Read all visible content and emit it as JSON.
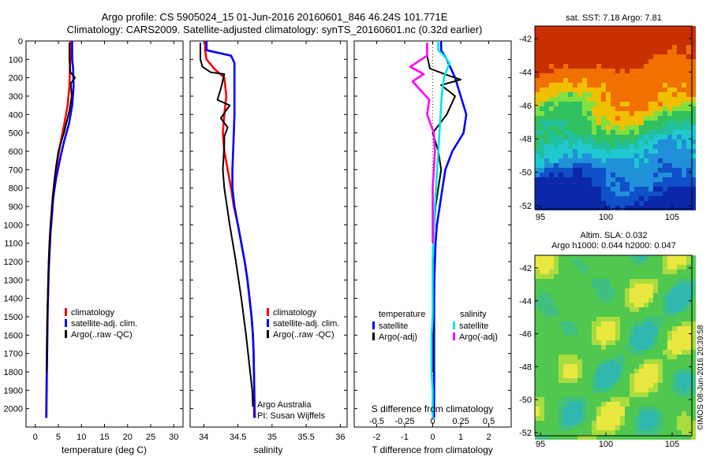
{
  "header": {
    "line1": "Argo profile: CS 5905024_15 01-Jun-2016 20160601_846 46.24S 101.771E",
    "line2": "Climatology: CARS2009. Satellite-adjusted climatology: synTS_20160601.nc (0.32d earlier)"
  },
  "chart_data": [
    {
      "type": "line",
      "id": "temperature",
      "xlabel": "temperature (deg C)",
      "xlim": [
        -2,
        32
      ],
      "ylim": [
        2100,
        0
      ],
      "x_ticks": [
        "0",
        "5",
        "10",
        "15",
        "20",
        "25",
        "30"
      ],
      "y_ticks": [
        "0",
        "100",
        "200",
        "300",
        "400",
        "500",
        "600",
        "700",
        "800",
        "900",
        "1000",
        "1100",
        "1200",
        "1300",
        "1400",
        "1500",
        "1600",
        "1700",
        "1800",
        "1900",
        "2000"
      ],
      "series": [
        {
          "name": "climatology",
          "color": "#ff0000",
          "x": [
            7.6,
            7.6,
            7.5,
            7.4,
            7.0,
            6.3,
            5.5,
            4.8,
            4.2,
            3.8,
            3.5,
            3.2,
            3.0,
            2.9,
            2.8,
            2.7,
            2.6,
            2.55,
            2.5,
            2.45,
            2.4,
            2.35
          ],
          "y": [
            0,
            100,
            150,
            250,
            350,
            450,
            550,
            650,
            750,
            850,
            950,
            1050,
            1150,
            1250,
            1350,
            1450,
            1550,
            1650,
            1750,
            1850,
            1950,
            2050
          ]
        },
        {
          "name": "satellite-adj. clim.",
          "color": "#0000ff",
          "x": [
            8.0,
            8.0,
            8.2,
            8.3,
            8.0,
            7.3,
            6.2,
            5.3,
            4.5,
            3.9,
            3.6,
            3.3,
            3.1,
            2.9,
            2.8,
            2.7,
            2.65,
            2.6,
            2.55,
            2.5,
            2.45,
            2.4
          ],
          "y": [
            0,
            100,
            150,
            250,
            350,
            450,
            550,
            650,
            750,
            850,
            950,
            1050,
            1150,
            1250,
            1350,
            1450,
            1550,
            1650,
            1750,
            1850,
            1950,
            2050
          ]
        },
        {
          "name": "Argo(..raw -QC)",
          "color": "#000000",
          "x": [
            7.4,
            7.4,
            7.6,
            8.6,
            7.7,
            7.9,
            7.4,
            6.2,
            5.0,
            4.4,
            4.0,
            3.6,
            3.3,
            3.1,
            2.9,
            2.8,
            2.7,
            2.6,
            2.55,
            2.5,
            2.45
          ],
          "y": [
            10,
            100,
            170,
            200,
            230,
            300,
            380,
            500,
            600,
            700,
            800,
            900,
            1000,
            1100,
            1200,
            1300,
            1400,
            1500,
            1600,
            1700,
            1800
          ]
        }
      ],
      "legend": [
        "climatology",
        "satellite-adj. clim.",
        "Argo(..raw -QC)"
      ]
    },
    {
      "type": "line",
      "id": "salinity",
      "xlabel": "salinity",
      "xlim": [
        33.8,
        36.1
      ],
      "ylim": [
        2100,
        0
      ],
      "x_ticks": [
        "34",
        "34.5",
        "35",
        "35.5",
        "36"
      ],
      "series": [
        {
          "name": "climatology",
          "color": "#ff0000",
          "x": [
            34.02,
            34.02,
            34.04,
            34.15,
            34.3,
            34.33,
            34.3,
            34.28,
            34.3,
            34.35,
            34.4,
            34.44,
            34.5,
            34.55,
            34.6,
            34.64,
            34.67,
            34.7,
            34.72,
            34.73,
            34.74,
            34.75
          ],
          "y": [
            0,
            50,
            100,
            150,
            200,
            300,
            400,
            500,
            600,
            700,
            800,
            900,
            1000,
            1100,
            1200,
            1300,
            1400,
            1500,
            1600,
            1700,
            1900,
            2050
          ]
        },
        {
          "name": "satellite-adj. clim.",
          "color": "#0000ff",
          "x": [
            34.04,
            34.04,
            34.4,
            34.45,
            34.45,
            34.45,
            34.45,
            34.44,
            34.43,
            34.42,
            34.42,
            34.45,
            34.5,
            34.55,
            34.6,
            34.64,
            34.67,
            34.7,
            34.72,
            34.73,
            34.74,
            34.74
          ],
          "y": [
            0,
            50,
            80,
            120,
            200,
            300,
            400,
            500,
            600,
            700,
            800,
            900,
            1000,
            1100,
            1200,
            1300,
            1400,
            1500,
            1600,
            1700,
            1900,
            2050
          ]
        },
        {
          "name": "Argo(..raw -QC)",
          "color": "#000000",
          "x": [
            33.95,
            33.95,
            33.98,
            34.1,
            34.3,
            34.25,
            34.2,
            34.38,
            34.25,
            34.35,
            34.3,
            34.3,
            34.28,
            34.3,
            34.38,
            34.47,
            34.55,
            34.62,
            34.68,
            34.71,
            34.72
          ],
          "y": [
            10,
            100,
            140,
            170,
            180,
            260,
            320,
            350,
            420,
            470,
            520,
            560,
            700,
            800,
            1000,
            1200,
            1400,
            1600,
            1800,
            1900,
            1990
          ]
        }
      ],
      "legend": [
        "climatology",
        "satellite-adj. clim.",
        "Argo(..raw -QC)"
      ],
      "annotation": [
        "Argo Australia",
        "PI: Susan Wijffels"
      ]
    },
    {
      "type": "line",
      "id": "difference",
      "xlabel": "T difference from climatology",
      "xlabel_top": "S difference from climatology",
      "xlim": [
        -2.8,
        2.8
      ],
      "ylim": [
        2100,
        0
      ],
      "x_ticks_T": [
        "-2",
        "-1",
        "0",
        "1",
        "2"
      ],
      "x_ticks_S": [
        "-0.5",
        "-0.25",
        "0",
        "0.25",
        "0.5"
      ],
      "series": [
        {
          "name": "temperature satellite",
          "color": "#0000ff",
          "x": [
            0.3,
            0.3,
            0.5,
            0.8,
            1.0,
            1.2,
            1.1,
            0.7,
            0.45,
            0.35,
            0.25,
            0.15,
            0.1,
            0.08,
            0.06,
            0.05,
            0.05,
            0.05,
            0.05,
            0.05,
            0.05,
            0.05
          ],
          "y": [
            0,
            50,
            100,
            200,
            300,
            400,
            500,
            600,
            700,
            800,
            900,
            1000,
            1100,
            1200,
            1300,
            1400,
            1500,
            1600,
            1700,
            1800,
            1900,
            2050
          ]
        },
        {
          "name": "temperature Argo(-adj)",
          "color": "#000000",
          "x": [
            -0.2,
            -0.2,
            -0.1,
            0.6,
            1.0,
            0.3,
            0.8,
            0.5,
            0.0,
            0.2,
            0.3,
            0.2,
            0.1,
            0.05,
            0.02,
            0.01,
            0.0,
            0.0,
            0.0,
            0.0
          ],
          "y": [
            10,
            80,
            150,
            190,
            210,
            240,
            300,
            400,
            500,
            600,
            700,
            800,
            900,
            1000,
            1100,
            1200,
            1300,
            1400,
            1600,
            1800
          ]
        },
        {
          "name": "salinity satellite",
          "color": "#00e5e5",
          "x": [
            0.05,
            0.05,
            0.1,
            0.15,
            0.1,
            0.08,
            0.07,
            0.06,
            0.05,
            0.04,
            0.03,
            0.02,
            0.01,
            0.0,
            0.0,
            0.0,
            -0.01,
            -0.01,
            0.0,
            0.0
          ],
          "y": [
            0,
            50,
            80,
            120,
            200,
            300,
            400,
            500,
            600,
            700,
            800,
            900,
            1000,
            1200,
            1400,
            1500,
            1600,
            1800,
            1900,
            2050
          ]
        },
        {
          "name": "salinity Argo(-adj)",
          "color": "#ff00ff",
          "x": [
            -0.05,
            -0.05,
            -0.2,
            -0.08,
            -0.18,
            -0.03,
            -0.05,
            0.01,
            0.02,
            0.01,
            0.0,
            0.0,
            0.0,
            0.0
          ],
          "y": [
            10,
            80,
            140,
            180,
            220,
            320,
            400,
            500,
            600,
            700,
            800,
            900,
            1000,
            1100
          ]
        }
      ],
      "legend_headers": [
        "temperature",
        "salinity"
      ],
      "legend": [
        "satellite",
        "Argo(-adj)",
        "satellite",
        "Argo(-adj)"
      ]
    }
  ],
  "maps": [
    {
      "id": "sst_map",
      "title": "sat. SST: 7.18  Argo: 7.81",
      "lat_ticks": [
        "-42",
        "-44",
        "-46",
        "-48",
        "-50",
        "-52"
      ],
      "lon_ticks": [
        "95",
        "100",
        "105"
      ]
    },
    {
      "id": "sla_map",
      "title_line1": "Altim. SLA: 0.032",
      "title_line2": "Argo h1000: 0.044 h2000: 0.047",
      "lat_ticks": [
        "-42",
        "-44",
        "-46",
        "-48",
        "-50",
        "-52"
      ],
      "lon_ticks": [
        "95",
        "100",
        "105"
      ]
    }
  ],
  "watermark": "©IMOS 08-Jun-2016 20:39:58"
}
